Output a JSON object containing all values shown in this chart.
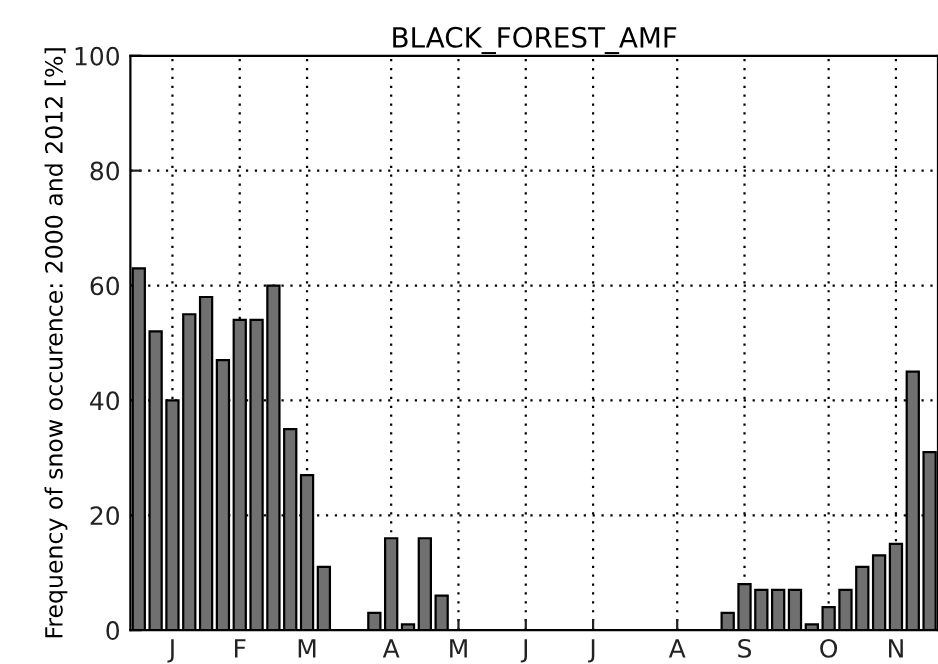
{
  "chart_data": {
    "type": "bar",
    "title": "BLACK_FOREST_AMF",
    "ylabel": "Frequency of snow occurence: 2000 and 2012 [%]",
    "categories": [
      null,
      null,
      "J",
      null,
      null,
      null,
      "F",
      null,
      null,
      null,
      "M",
      null,
      null,
      null,
      null,
      "A",
      null,
      null,
      null,
      "M",
      null,
      null,
      null,
      "J",
      null,
      null,
      null,
      "J",
      null,
      null,
      null,
      null,
      "A",
      null,
      null,
      null,
      "S",
      null,
      null,
      null,
      null,
      "O",
      null,
      null,
      null,
      "N",
      null,
      null
    ],
    "values": [
      63,
      52,
      40,
      55,
      58,
      47,
      54,
      54,
      60,
      35,
      27,
      11,
      0,
      0,
      3,
      16,
      1,
      16,
      6,
      0,
      0,
      0,
      0,
      0,
      0,
      0,
      0,
      0,
      0,
      0,
      0,
      0,
      0,
      0,
      0,
      3,
      8,
      7,
      7,
      7,
      1,
      4,
      7,
      11,
      13,
      15,
      45,
      31
    ],
    "color": "#707070",
    "ylim": [
      0,
      100
    ],
    "yticks": [
      0,
      20,
      40,
      60,
      80,
      100
    ],
    "grid": true
  }
}
